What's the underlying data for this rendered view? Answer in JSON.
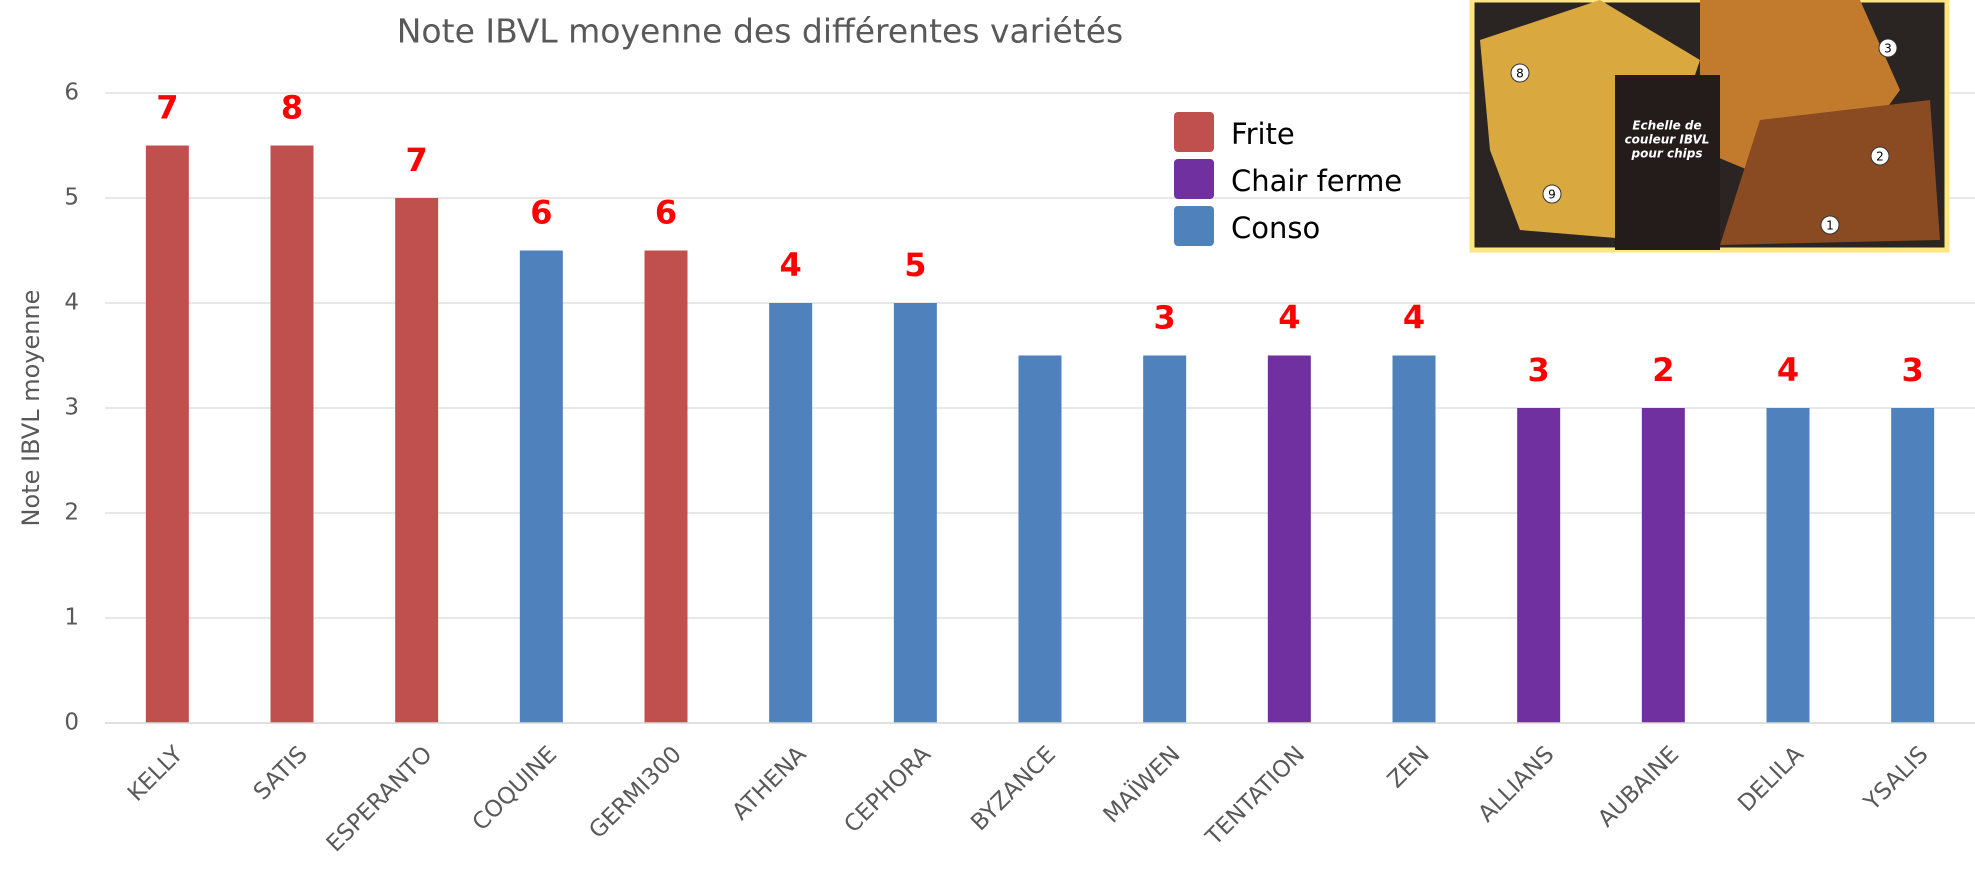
{
  "chart_data": {
    "type": "bar",
    "title": "Note IBVL moyenne des différentes variétés",
    "y_label": "Note IBVL moyenne",
    "categories": [
      "KELLY",
      "SATIS",
      "ESPERANTO",
      "COQUINE",
      "GERMI300",
      "ATHENA",
      "CEPHORA",
      "BYZANCE",
      "MAÏWEN",
      "TENTATION",
      "ZEN",
      "ALLIANS",
      "AUBAINE",
      "DELILA",
      "YSALIS"
    ],
    "series": [
      {
        "name": "Frite",
        "color": "#c0504d",
        "values": [
          5.5,
          5.5,
          5,
          null,
          4.5,
          null,
          null,
          null,
          null,
          null,
          null,
          null,
          null,
          null,
          null
        ]
      },
      {
        "name": "Chair ferme",
        "color": "#7030a0",
        "values": [
          null,
          null,
          null,
          null,
          null,
          null,
          null,
          null,
          null,
          3.5,
          null,
          3,
          3,
          null,
          null
        ]
      },
      {
        "name": "Conso",
        "color": "#4f81bd",
        "values": [
          null,
          null,
          null,
          4.5,
          null,
          4,
          4,
          3.5,
          3.5,
          null,
          3.5,
          null,
          null,
          3,
          3
        ]
      }
    ],
    "annotations": [
      7,
      8,
      7,
      6,
      6,
      4,
      5,
      null,
      3,
      4,
      4,
      3,
      2,
      4,
      3
    ],
    "annotation_color": "#ff0000",
    "ylim": [
      0,
      6
    ],
    "yticks": [
      0,
      1,
      2,
      3,
      4,
      5,
      6
    ],
    "grid": true,
    "legend": "top-right"
  },
  "inset": {
    "caption": [
      "Echelle de",
      "couleur IBVL",
      "pour chips"
    ],
    "markers": [
      "8",
      "3",
      "2",
      "9",
      "1"
    ]
  }
}
